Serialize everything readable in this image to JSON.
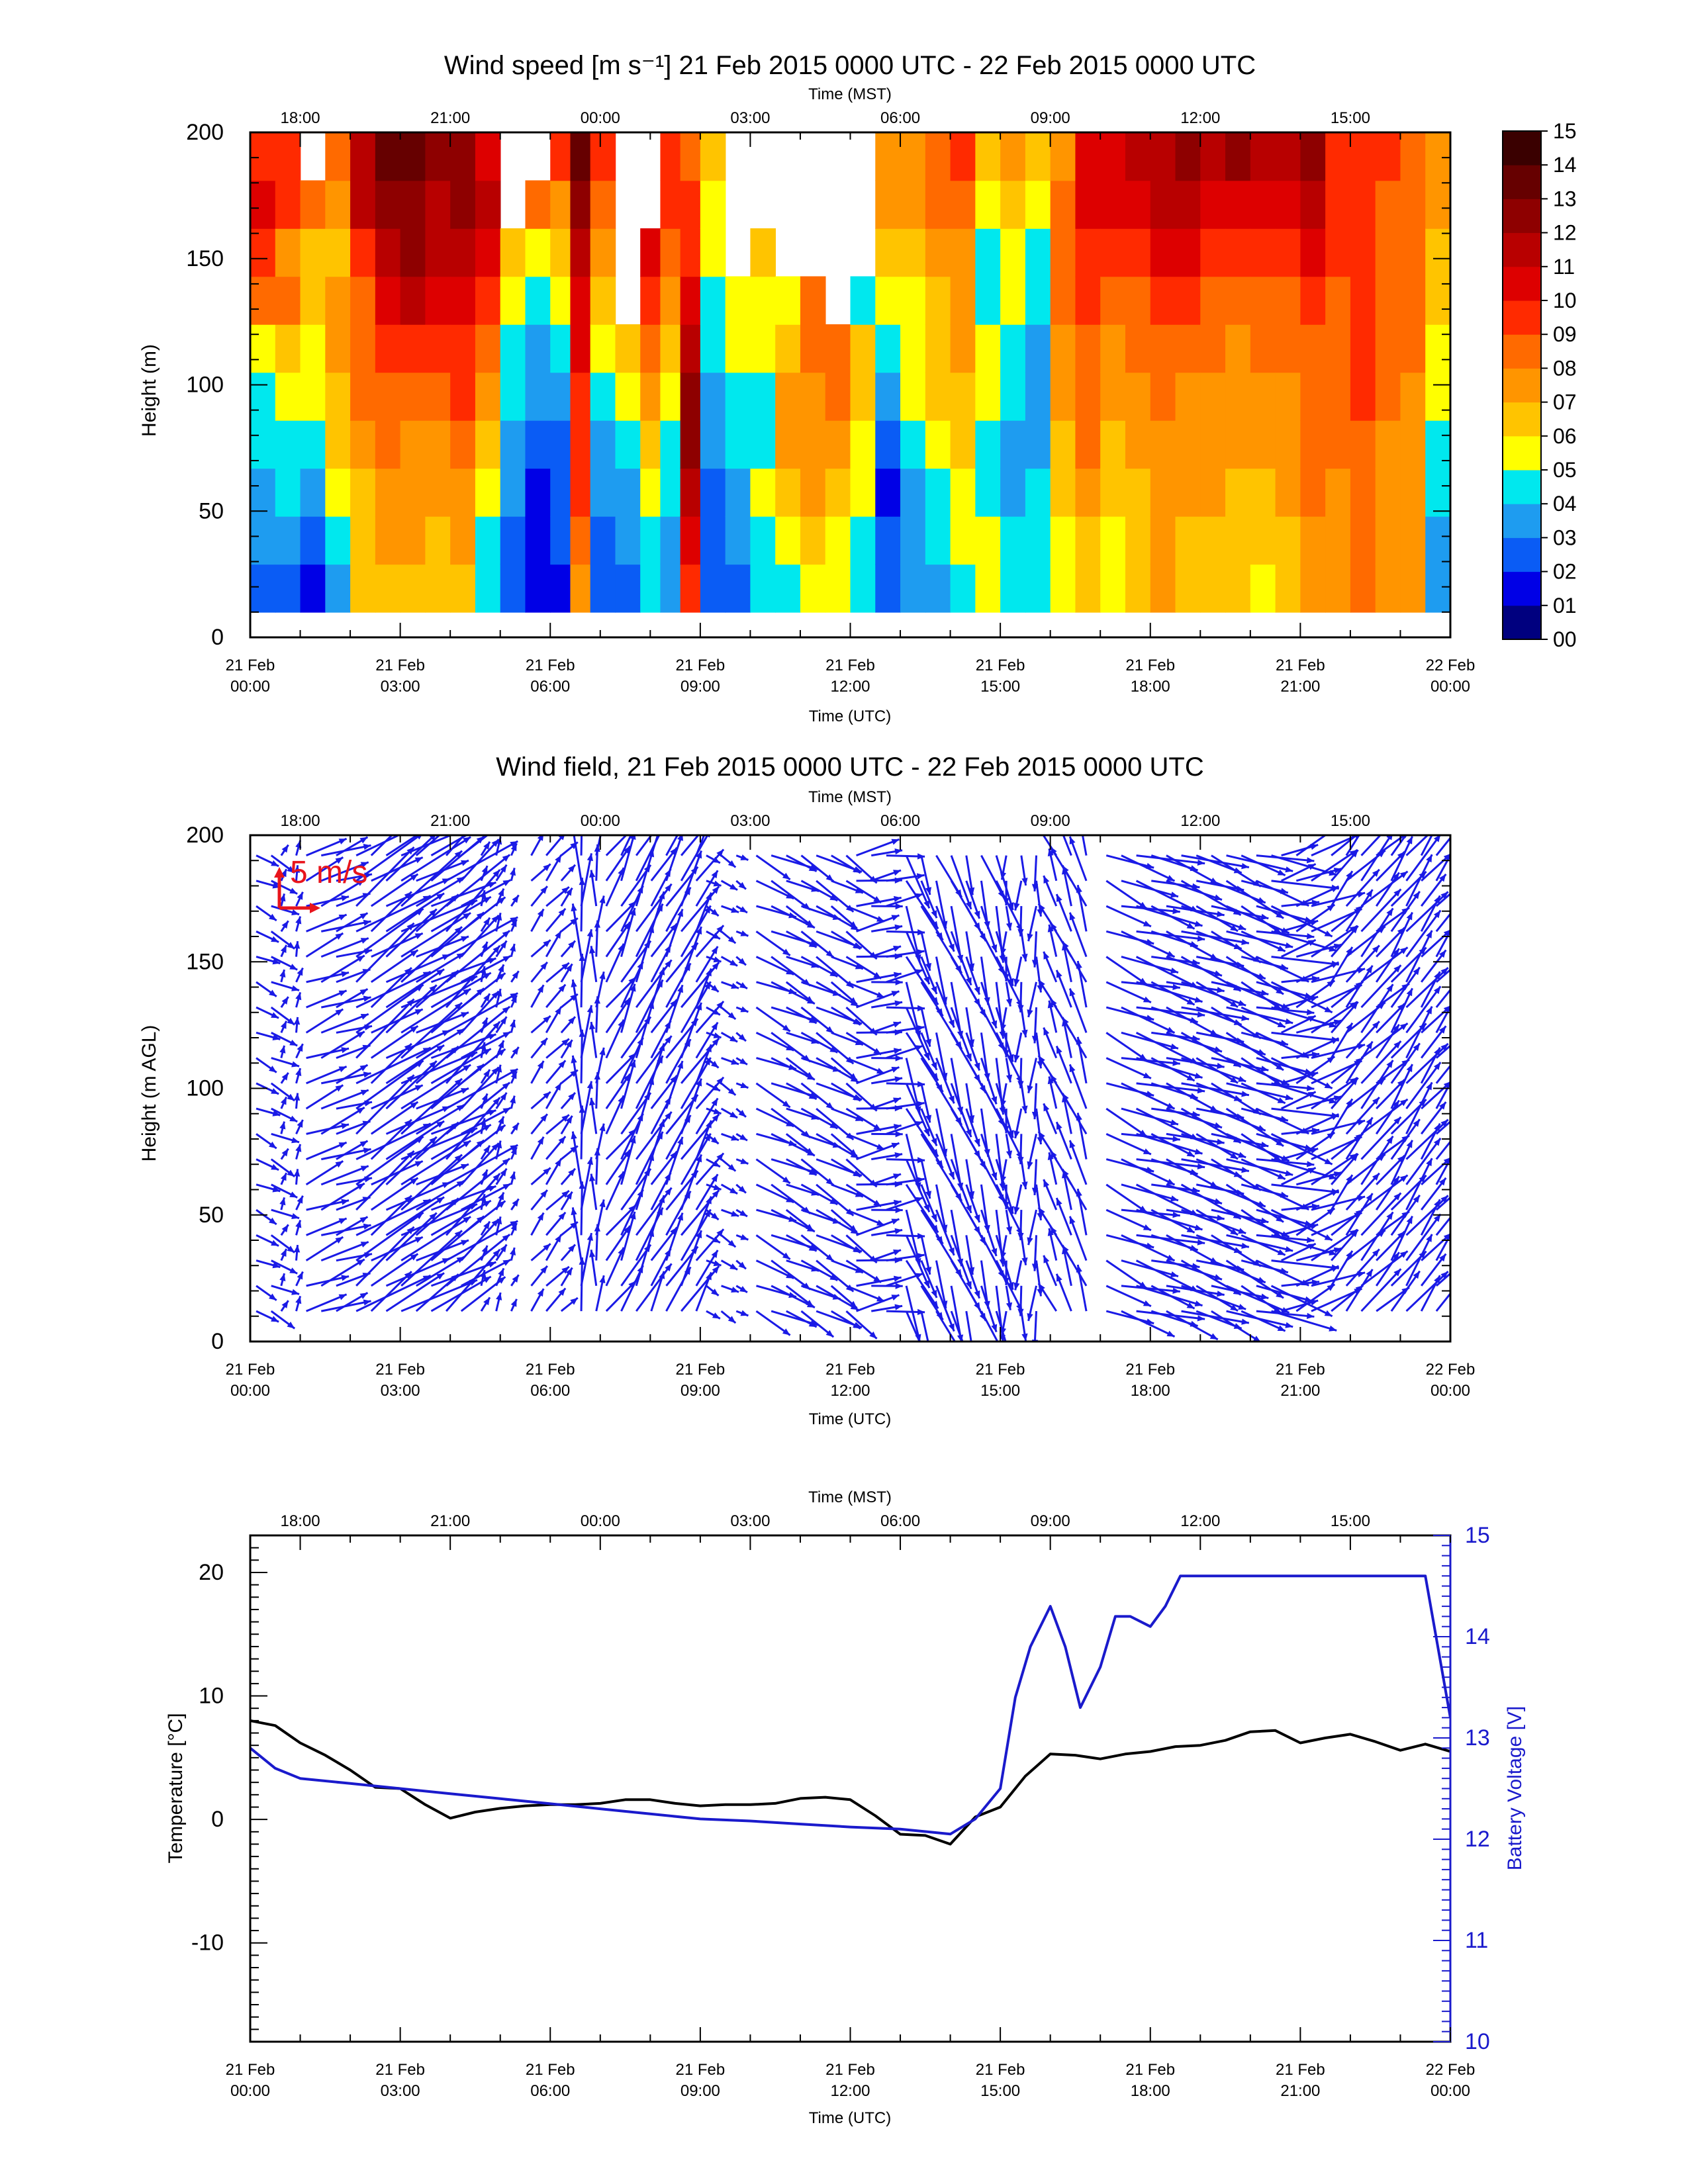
{
  "time_axis": {
    "utc_ticks": [
      {
        "day": "21 Feb",
        "time": "00:00"
      },
      {
        "day": "21 Feb",
        "time": "03:00"
      },
      {
        "day": "21 Feb",
        "time": "06:00"
      },
      {
        "day": "21 Feb",
        "time": "09:00"
      },
      {
        "day": "21 Feb",
        "time": "12:00"
      },
      {
        "day": "21 Feb",
        "time": "15:00"
      },
      {
        "day": "21 Feb",
        "time": "18:00"
      },
      {
        "day": "21 Feb",
        "time": "21:00"
      },
      {
        "day": "22 Feb",
        "time": "00:00"
      }
    ],
    "mst_ticks": [
      "18:00",
      "21:00",
      "00:00",
      "03:00",
      "06:00",
      "09:00",
      "12:00",
      "15:00"
    ],
    "utc_label": "Time (UTC)",
    "mst_label": "Time (MST)"
  },
  "chart_data": [
    {
      "type": "heatmap",
      "title": "Wind speed [m s⁻¹] 21 Feb 2015 0000 UTC - 22 Feb 2015 0000 UTC",
      "xlabel": "Time (UTC)",
      "x2label": "Time (MST)",
      "ylabel": "Height (m)",
      "yticks": [
        "0",
        "50",
        "100",
        "150",
        "200"
      ],
      "ylim": [
        0,
        200
      ],
      "xlim_hours_utc": [
        0,
        24
      ],
      "data_height_range": [
        10,
        200
      ],
      "colorbar": {
        "labels": [
          "00",
          "01",
          "02",
          "03",
          "04",
          "05",
          "06",
          "07",
          "08",
          "09",
          "10",
          "11",
          "12",
          "13",
          "14",
          "15"
        ],
        "colors": [
          "#00007f",
          "#0000e6",
          "#0a5cf5",
          "#1e9cf0",
          "#00e8ee",
          "#ffff00",
          "#ffc400",
          "#ff9500",
          "#ff6a00",
          "#ff2a00",
          "#dd0000",
          "#b80000",
          "#8e0000",
          "#660000",
          "#3a0000"
        ]
      },
      "columns": [
        {
          "t": 0.0,
          "s": [
            2,
            3,
            3,
            4,
            4,
            5,
            8,
            9,
            10,
            9
          ]
        },
        {
          "t": 0.5,
          "s": [
            2,
            3,
            4,
            4,
            5,
            6,
            8,
            7,
            9,
            9
          ]
        },
        {
          "t": 1.0,
          "s": [
            1,
            2,
            3,
            4,
            5,
            5,
            6,
            6,
            8,
            null
          ]
        },
        {
          "t": 1.5,
          "s": [
            3,
            4,
            5,
            6,
            6,
            7,
            7,
            6,
            7,
            8
          ]
        },
        {
          "t": 2.0,
          "s": [
            6,
            6,
            6,
            7,
            8,
            8,
            8,
            9,
            11,
            11
          ]
        },
        {
          "t": 2.5,
          "s": [
            6,
            7,
            7,
            8,
            8,
            9,
            10,
            11,
            12,
            13
          ]
        },
        {
          "t": 3.0,
          "s": [
            6,
            7,
            7,
            7,
            8,
            9,
            11,
            12,
            12,
            13
          ]
        },
        {
          "t": 3.5,
          "s": [
            6,
            6,
            7,
            7,
            8,
            9,
            10,
            11,
            11,
            12
          ]
        },
        {
          "t": 4.0,
          "s": [
            6,
            7,
            7,
            8,
            9,
            9,
            10,
            11,
            12,
            12
          ]
        },
        {
          "t": 4.5,
          "s": [
            4,
            4,
            5,
            6,
            7,
            8,
            9,
            10,
            11,
            10
          ]
        },
        {
          "t": 5.0,
          "s": [
            2,
            2,
            3,
            3,
            4,
            4,
            5,
            6,
            null,
            null
          ]
        },
        {
          "t": 5.5,
          "s": [
            1,
            1,
            1,
            2,
            3,
            3,
            4,
            5,
            8,
            null
          ]
        },
        {
          "t": 6.0,
          "s": [
            1,
            2,
            2,
            2,
            3,
            4,
            5,
            6,
            7,
            9
          ]
        },
        {
          "t": 6.4,
          "s": [
            7,
            8,
            9,
            9,
            9,
            10,
            10,
            11,
            12,
            13
          ]
        },
        {
          "t": 6.8,
          "s": [
            2,
            2,
            3,
            3,
            4,
            5,
            6,
            7,
            8,
            9
          ]
        },
        {
          "t": 7.3,
          "s": [
            2,
            3,
            3,
            4,
            5,
            6,
            null,
            null,
            null,
            null
          ]
        },
        {
          "t": 7.8,
          "s": [
            4,
            4,
            5,
            6,
            7,
            8,
            9,
            10,
            null,
            null
          ]
        },
        {
          "t": 8.2,
          "s": [
            3,
            3,
            4,
            4,
            5,
            6,
            7,
            8,
            9,
            9
          ]
        },
        {
          "t": 8.6,
          "s": [
            9,
            10,
            11,
            12,
            12,
            11,
            10,
            9,
            9,
            8
          ]
        },
        {
          "t": 9.0,
          "s": [
            2,
            2,
            2,
            3,
            3,
            4,
            4,
            5,
            5,
            6
          ]
        },
        {
          "t": 9.5,
          "s": [
            2,
            3,
            3,
            4,
            4,
            5,
            5,
            null,
            null,
            null
          ]
        },
        {
          "t": 10.0,
          "s": [
            4,
            4,
            5,
            4,
            4,
            5,
            5,
            6,
            null,
            null
          ]
        },
        {
          "t": 10.5,
          "s": [
            4,
            5,
            6,
            7,
            7,
            6,
            5,
            null,
            null,
            null
          ]
        },
        {
          "t": 11.0,
          "s": [
            5,
            6,
            7,
            7,
            7,
            8,
            8,
            null,
            null,
            null
          ]
        },
        {
          "t": 11.5,
          "s": [
            5,
            5,
            6,
            7,
            8,
            8,
            null,
            null,
            null,
            null
          ]
        },
        {
          "t": 12.0,
          "s": [
            4,
            4,
            5,
            5,
            6,
            6,
            4,
            null,
            null,
            null
          ]
        },
        {
          "t": 12.5,
          "s": [
            2,
            2,
            1,
            2,
            3,
            4,
            5,
            6,
            7,
            7
          ]
        },
        {
          "t": 13.0,
          "s": [
            3,
            3,
            3,
            4,
            5,
            5,
            5,
            6,
            7,
            7
          ]
        },
        {
          "t": 13.5,
          "s": [
            3,
            4,
            4,
            5,
            6,
            6,
            6,
            7,
            8,
            8
          ]
        },
        {
          "t": 14.0,
          "s": [
            4,
            5,
            5,
            6,
            6,
            7,
            7,
            7,
            8,
            9
          ]
        },
        {
          "t": 14.5,
          "s": [
            5,
            5,
            4,
            4,
            5,
            5,
            4,
            4,
            5,
            6
          ]
        },
        {
          "t": 15.0,
          "s": [
            4,
            4,
            3,
            3,
            4,
            4,
            5,
            5,
            6,
            7
          ]
        },
        {
          "t": 15.5,
          "s": [
            4,
            4,
            4,
            3,
            3,
            3,
            4,
            4,
            5,
            6
          ]
        },
        {
          "t": 16.0,
          "s": [
            5,
            5,
            6,
            6,
            7,
            7,
            8,
            8,
            8,
            7
          ]
        },
        {
          "t": 16.5,
          "s": [
            6,
            6,
            7,
            8,
            8,
            8,
            9,
            9,
            10,
            10
          ]
        },
        {
          "t": 17.0,
          "s": [
            5,
            5,
            6,
            6,
            7,
            7,
            8,
            9,
            10,
            10
          ]
        },
        {
          "t": 17.5,
          "s": [
            6,
            6,
            6,
            7,
            7,
            8,
            8,
            9,
            10,
            11
          ]
        },
        {
          "t": 18.0,
          "s": [
            7,
            7,
            7,
            7,
            8,
            8,
            9,
            10,
            11,
            11
          ]
        },
        {
          "t": 18.5,
          "s": [
            6,
            6,
            7,
            7,
            7,
            8,
            9,
            10,
            11,
            12
          ]
        },
        {
          "t": 19.0,
          "s": [
            6,
            6,
            7,
            7,
            7,
            8,
            8,
            9,
            10,
            11
          ]
        },
        {
          "t": 19.5,
          "s": [
            6,
            6,
            6,
            7,
            7,
            7,
            8,
            9,
            10,
            12
          ]
        },
        {
          "t": 20.0,
          "s": [
            5,
            6,
            6,
            7,
            7,
            8,
            8,
            9,
            10,
            11
          ]
        },
        {
          "t": 20.5,
          "s": [
            6,
            6,
            7,
            7,
            7,
            8,
            8,
            9,
            10,
            11
          ]
        },
        {
          "t": 21.0,
          "s": [
            7,
            7,
            8,
            8,
            8,
            8,
            9,
            10,
            11,
            12
          ]
        },
        {
          "t": 21.5,
          "s": [
            7,
            7,
            7,
            8,
            8,
            8,
            8,
            9,
            9,
            9
          ]
        },
        {
          "t": 22.0,
          "s": [
            8,
            8,
            8,
            8,
            9,
            9,
            9,
            9,
            9,
            9
          ]
        },
        {
          "t": 22.5,
          "s": [
            7,
            7,
            7,
            7,
            8,
            8,
            8,
            8,
            8,
            9
          ]
        },
        {
          "t": 23.0,
          "s": [
            7,
            7,
            7,
            7,
            7,
            8,
            8,
            8,
            8,
            8
          ]
        },
        {
          "t": 23.5,
          "s": [
            3,
            3,
            4,
            4,
            5,
            5,
            6,
            6,
            7,
            7
          ]
        }
      ]
    },
    {
      "type": "scatter",
      "subtype": "wind-vector-field",
      "title": "Wind field, 21 Feb 2015 0000 UTC - 22 Feb 2015 0000 UTC",
      "xlabel": "Time (UTC)",
      "x2label": "Time (MST)",
      "ylabel": "Height (m AGL)",
      "yticks": [
        "0",
        "50",
        "100",
        "150",
        "200"
      ],
      "ylim": [
        0,
        200
      ],
      "xlim_hours_utc": [
        0,
        24
      ],
      "vector_color": "#1a1ae6",
      "scale_label": "5 m/s",
      "scale_color": "#e8141c",
      "segments": [
        {
          "t0": 0.0,
          "t1": 0.5,
          "dir_deg": 300,
          "speed": 3
        },
        {
          "t0": 0.5,
          "t1": 1.0,
          "dir_deg": 200,
          "speed": 2
        },
        {
          "t0": 1.0,
          "t1": 2.0,
          "dir_deg": 245,
          "speed": 5
        },
        {
          "t0": 2.0,
          "t1": 4.5,
          "dir_deg": 235,
          "speed": 9
        },
        {
          "t0": 4.5,
          "t1": 5.5,
          "dir_deg": 200,
          "speed": 2
        },
        {
          "t0": 5.5,
          "t1": 6.5,
          "dir_deg": 220,
          "speed": 3
        },
        {
          "t0": 6.5,
          "t1": 7.0,
          "dir_deg": 185,
          "speed": 6
        },
        {
          "t0": 7.0,
          "t1": 9.0,
          "dir_deg": 210,
          "speed": 6
        },
        {
          "t0": 9.0,
          "t1": 10.0,
          "dir_deg": 300,
          "speed": 2
        },
        {
          "t0": 10.0,
          "t1": 12.0,
          "dir_deg": 300,
          "speed": 5
        },
        {
          "t0": 12.0,
          "t1": 13.0,
          "dir_deg": 260,
          "speed": 5
        },
        {
          "t0": 13.0,
          "t1": 15.0,
          "dir_deg": 340,
          "speed": 6
        },
        {
          "t0": 15.0,
          "t1": 16.0,
          "dir_deg": 0,
          "speed": 4
        },
        {
          "t0": 16.0,
          "t1": 17.0,
          "dir_deg": 160,
          "speed": 5
        },
        {
          "t0": 17.0,
          "t1": 20.5,
          "dir_deg": 290,
          "speed": 7
        },
        {
          "t0": 20.5,
          "t1": 21.5,
          "dir_deg": 250,
          "speed": 6
        },
        {
          "t0": 21.5,
          "t1": 24.0,
          "dir_deg": 220,
          "speed": 6
        }
      ]
    },
    {
      "type": "line",
      "title": "",
      "xlabel": "Time (UTC)",
      "x2label": "Time (MST)",
      "ylabel": "Temperature [°C]",
      "y2label": "Battery Voltage [V]",
      "yticks": [
        "-10",
        "0",
        "10",
        "20"
      ],
      "ylim": [
        -18,
        23
      ],
      "y2ticks": [
        "10",
        "11",
        "12",
        "13",
        "14",
        "15"
      ],
      "y2lim": [
        10,
        15
      ],
      "y2color": "#1a1acc",
      "series": [
        {
          "axis": "left",
          "color": "#000000",
          "x": [
            0,
            0.5,
            1,
            1.5,
            2,
            2.5,
            3,
            3.5,
            4,
            4.5,
            5,
            5.5,
            6,
            6.5,
            7,
            7.5,
            8,
            8.5,
            9,
            9.5,
            10,
            10.5,
            11,
            11.5,
            12,
            12.5,
            13,
            13.5,
            14,
            14.5,
            15,
            15.5,
            16,
            16.5,
            17,
            17.5,
            18,
            18.5,
            19,
            19.5,
            20,
            20.5,
            21,
            21.5,
            22,
            22.5,
            23,
            23.5,
            24
          ],
          "y": [
            8,
            7.6,
            6.2,
            5.2,
            4.0,
            2.6,
            2.5,
            1.2,
            0.1,
            0.6,
            0.9,
            1.1,
            1.2,
            1.2,
            1.3,
            1.6,
            1.6,
            1.3,
            1.1,
            1.2,
            1.2,
            1.3,
            1.7,
            1.8,
            1.6,
            0.3,
            -1.2,
            -1.3,
            -2.0,
            0.2,
            1.0,
            3.5,
            5.3,
            5.2,
            4.9,
            5.3,
            5.5,
            5.9,
            6.0,
            6.4,
            7.1,
            7.2,
            6.2,
            6.6,
            6.9,
            6.3,
            5.6,
            6.1,
            5.5
          ]
        },
        {
          "axis": "right",
          "color": "#1a1acc",
          "x": [
            0,
            0.5,
            1,
            2,
            3,
            4,
            5,
            6,
            7,
            8,
            9,
            10,
            11,
            12,
            13,
            14,
            14.5,
            15,
            15.3,
            15.6,
            16,
            16.3,
            16.6,
            17,
            17.3,
            17.6,
            18,
            18.3,
            18.6,
            19,
            19.5,
            20,
            21,
            22,
            22.5,
            23,
            23.5,
            24
          ],
          "y": [
            12.9,
            12.7,
            12.6,
            12.55,
            12.5,
            12.45,
            12.4,
            12.35,
            12.3,
            12.25,
            12.2,
            12.18,
            12.15,
            12.12,
            12.1,
            12.05,
            12.2,
            12.5,
            13.4,
            13.9,
            14.3,
            13.9,
            13.3,
            13.7,
            14.2,
            14.2,
            14.1,
            14.3,
            14.6,
            14.6,
            14.6,
            14.6,
            14.6,
            14.6,
            14.6,
            14.6,
            14.6,
            13.2
          ]
        }
      ]
    }
  ]
}
